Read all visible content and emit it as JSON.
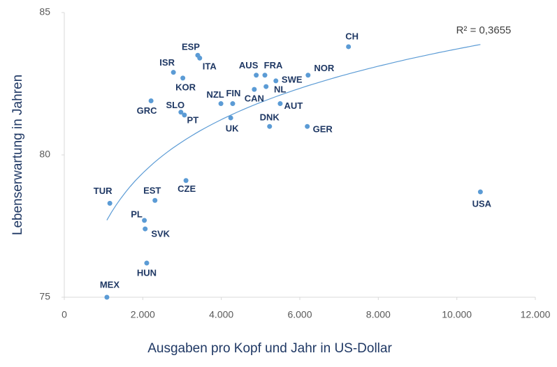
{
  "chart_data": {
    "type": "scatter",
    "xlabel": "Ausgaben pro Kopf und Jahr in US-Dollar",
    "ylabel": "Lebenserwartung in Jahren",
    "color": "#5b9bd5",
    "label_color": "#1f3864",
    "categories": [
      "MEX",
      "HUN",
      "SVK",
      "PL",
      "TUR",
      "EST",
      "CZE",
      "USA",
      "GRC",
      "SLO",
      "PT",
      "ISR",
      "KOR",
      "ESP",
      "ITA",
      "UK",
      "NZL",
      "FIN",
      "AUS",
      "FRA",
      "CAN",
      "SWE",
      "NL",
      "AUT",
      "DNK",
      "GER",
      "NOR",
      "CH"
    ],
    "x": [
      1085,
      2100,
      2060,
      2040,
      1160,
      2310,
      3100,
      10600,
      2210,
      2970,
      3060,
      2780,
      3020,
      3400,
      3450,
      4240,
      3990,
      4290,
      4890,
      5110,
      4840,
      5390,
      5140,
      5500,
      5230,
      6190,
      6210,
      7240
    ],
    "values": [
      75.0,
      76.2,
      77.4,
      77.7,
      78.3,
      78.4,
      79.1,
      78.7,
      81.9,
      81.5,
      81.4,
      82.9,
      82.7,
      83.5,
      83.4,
      81.3,
      81.8,
      81.8,
      82.8,
      82.8,
      82.3,
      82.6,
      82.4,
      81.8,
      81.0,
      81.0,
      82.8,
      83.8
    ],
    "xlim": [
      0,
      12000
    ],
    "xticks": [
      0,
      {
        "value": 2000,
        "label": "2.000"
      },
      {
        "value": 4000,
        "label": "4.000"
      },
      {
        "value": 6000,
        "label": "6.000"
      },
      {
        "value": 8000,
        "label": "8.000"
      },
      {
        "value": 10000,
        "label": "10.000"
      },
      {
        "value": 12000,
        "label": "12.000"
      }
    ],
    "ylim": [
      75,
      85
    ],
    "yticks": [
      75,
      80,
      85
    ],
    "trendline": {
      "type": "logarithmic",
      "label": "R² = 0,3655"
    }
  }
}
